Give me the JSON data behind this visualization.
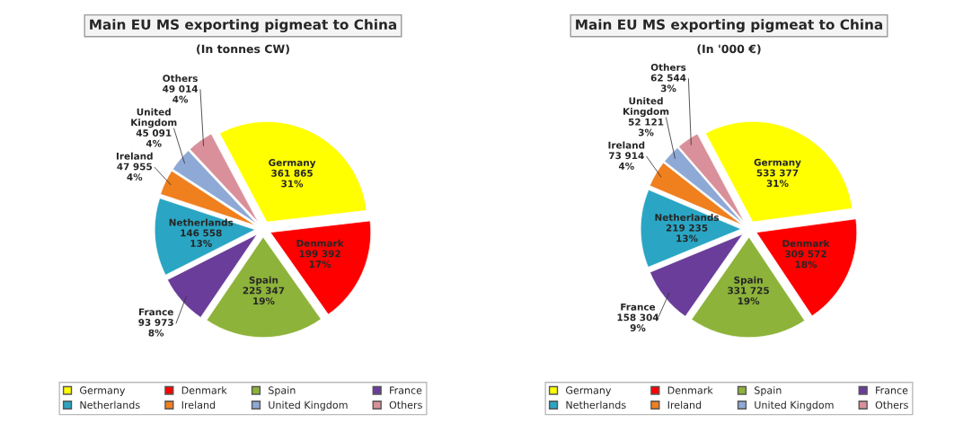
{
  "chart_data": [
    {
      "type": "pie",
      "title": "Main EU MS exporting pigmeat to China",
      "subtitle": "(In tonnes CW)",
      "categories": [
        "Germany",
        "Denmark",
        "Spain",
        "France",
        "Netherlands",
        "Ireland",
        "United Kingdom",
        "Others"
      ],
      "values": [
        361865,
        199392,
        225347,
        93973,
        146558,
        47955,
        45091,
        49014
      ],
      "value_labels": [
        "361 865\n31%",
        "199 392\n17%",
        "225 347\n19%",
        "93 973\n8%",
        "146 558\n13%",
        "47 955\n4%",
        "45 091\n4%",
        "49 014\n4%"
      ],
      "colors": [
        "#ffff00",
        "#ff0000",
        "#8db33a",
        "#6a3d9a",
        "#2aa6c4",
        "#f07f1e",
        "#8fa9d6",
        "#d9909a"
      ],
      "legend": "bottom"
    },
    {
      "type": "pie",
      "title": "Main EU MS exporting pigmeat to China",
      "subtitle": "(In '000 €)",
      "categories": [
        "Germany",
        "Denmark",
        "Spain",
        "France",
        "Netherlands",
        "Ireland",
        "United Kingdom",
        "Others"
      ],
      "values": [
        533377,
        309572,
        331725,
        158304,
        219235,
        73914,
        52121,
        62544
      ],
      "value_labels": [
        "533 377\n31%",
        "309 572\n18%",
        "331 725\n19%",
        "158 304\n9%",
        "219 235\n13%",
        "73 914\n4%",
        "52 121\n3%",
        "62 544\n3%"
      ],
      "colors": [
        "#ffff00",
        "#ff0000",
        "#8db33a",
        "#6a3d9a",
        "#2aa6c4",
        "#f07f1e",
        "#8fa9d6",
        "#d9909a"
      ],
      "legend": "bottom"
    }
  ]
}
